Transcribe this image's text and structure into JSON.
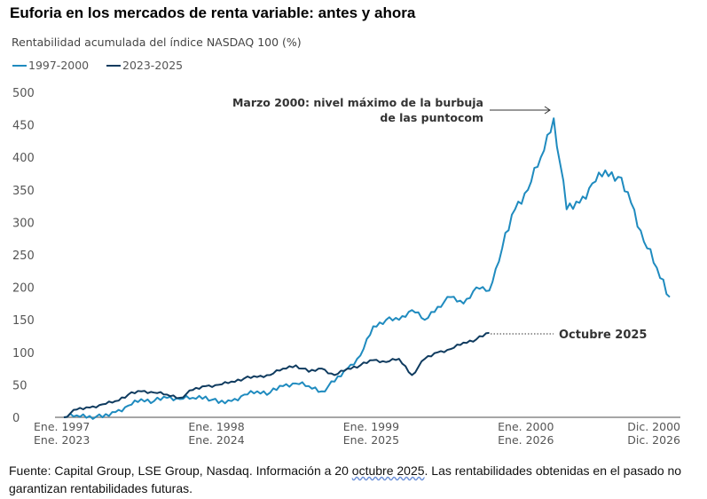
{
  "title": "Euforia en los mercados de renta variable: antes y ahora",
  "footer": {
    "pre": "Fuente: Capital Group, LSE Group, Nasdaq. Información a 20 ",
    "underlined": "octubre 2025",
    "post": ". Las rentabilidades obtenidas en el pasado no garantizan rentabilidades futuras."
  },
  "chart_data": {
    "type": "line",
    "title": "Rentabilidad acumulada del índice NASDAQ 100 (%)",
    "ylim": [
      0,
      500
    ],
    "yticks": [
      0,
      50,
      100,
      150,
      200,
      250,
      300,
      350,
      400,
      450,
      500
    ],
    "grid": false,
    "legend_position": "top-left",
    "xticks": [
      {
        "month": 0,
        "top": "Ene. 1997",
        "bottom": "Ene. 2023"
      },
      {
        "month": 12,
        "top": "Ene. 1998",
        "bottom": "Ene. 2024"
      },
      {
        "month": 24,
        "top": "Ene. 1999",
        "bottom": "Ene. 2025"
      },
      {
        "month": 36,
        "top": "Ene. 2000",
        "bottom": "Ene. 2026"
      },
      {
        "month": 47,
        "top": "Dic. 2000",
        "bottom": "Dic. 2026"
      }
    ],
    "series": [
      {
        "name": "1997-2000",
        "color": "#1f8bbf",
        "start": "1997-01",
        "values": [
          0,
          3,
          2,
          0,
          8,
          18,
          28,
          25,
          30,
          28,
          30,
          32,
          22,
          25,
          35,
          40,
          38,
          48,
          52,
          48,
          40,
          55,
          75,
          95,
          140,
          150,
          150,
          165,
          150,
          170,
          185,
          175,
          200,
          195,
          260,
          320,
          350,
          400,
          460,
          320,
          330,
          360,
          380,
          370,
          330,
          270,
          230,
          185
        ]
      },
      {
        "name": "2023-2025",
        "color": "#0f3b5f",
        "start": "2023-01",
        "values": [
          0,
          12,
          15,
          20,
          25,
          35,
          40,
          38,
          35,
          30,
          42,
          48,
          50,
          55,
          60,
          62,
          65,
          75,
          80,
          70,
          75,
          65,
          75,
          80,
          88,
          85,
          90,
          65,
          90,
          100,
          105,
          115,
          120,
          130
        ]
      }
    ],
    "annotations": [
      {
        "text_line1": "Marzo 2000: nivel máximo de la burbuja",
        "text_line2": "de las puntocom",
        "series": 0,
        "month": 38
      },
      {
        "text": "Octubre 2025",
        "series": 1,
        "month": 33
      }
    ]
  }
}
